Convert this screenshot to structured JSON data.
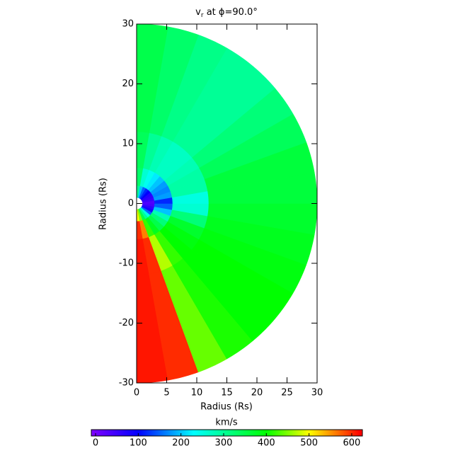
{
  "chart_data": {
    "type": "polar-heatmap",
    "title": {
      "main": "v",
      "sub": "r",
      "rest": " at ϕ=90.0°"
    },
    "xlabel": "Radius (Rs)",
    "ylabel": "Radius (Rs)",
    "xlim": [
      0,
      30
    ],
    "ylim": [
      -30,
      30
    ],
    "xticks": [
      0,
      5,
      10,
      15,
      20,
      25,
      30
    ],
    "yticks": [
      -30,
      -20,
      -10,
      0,
      10,
      20,
      30
    ],
    "theta_bins": [
      -90,
      -80,
      -70,
      -60,
      -50,
      -40,
      -30,
      -20,
      -10,
      0,
      10,
      20,
      30,
      40,
      50,
      60,
      70,
      80,
      90
    ],
    "r_bins": [
      1,
      3,
      6,
      12,
      30
    ],
    "values": [
      [
        500,
        600,
        610,
        610
      ],
      [
        450,
        560,
        600,
        600
      ],
      [
        350,
        420,
        470,
        440
      ],
      [
        300,
        380,
        420,
        410
      ],
      [
        250,
        350,
        400,
        400
      ],
      [
        150,
        320,
        390,
        400
      ],
      [
        80,
        280,
        370,
        390
      ],
      [
        60,
        200,
        320,
        380
      ],
      [
        40,
        150,
        260,
        370
      ],
      [
        30,
        120,
        250,
        360
      ],
      [
        50,
        180,
        290,
        360
      ],
      [
        60,
        170,
        290,
        340
      ],
      [
        70,
        180,
        280,
        320
      ],
      [
        100,
        200,
        270,
        300
      ],
      [
        120,
        220,
        270,
        300
      ],
      [
        150,
        240,
        280,
        310
      ],
      [
        200,
        260,
        300,
        330
      ],
      [
        300,
        330,
        340,
        350
      ]
    ],
    "colorbar": {
      "label": "km/s",
      "clim": [
        -10,
        625
      ],
      "ticks": [
        0,
        100,
        200,
        300,
        400,
        500,
        600
      ]
    },
    "colormap": [
      {
        "value": -10,
        "color": "#8000ff"
      },
      {
        "value": 100,
        "color": "#0000ff"
      },
      {
        "value": 230,
        "color": "#00ffff"
      },
      {
        "value": 400,
        "color": "#00ff00"
      },
      {
        "value": 500,
        "color": "#ffff00"
      },
      {
        "value": 620,
        "color": "#ff0000"
      }
    ]
  }
}
